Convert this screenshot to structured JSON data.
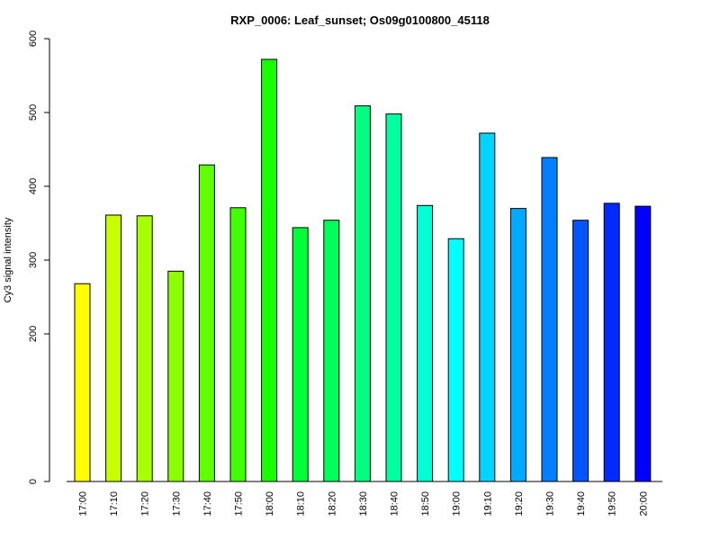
{
  "chart_data": {
    "type": "bar",
    "title": "RXP_0006: Leaf_sunset; Os09g0100800_45118",
    "xlabel": "",
    "ylabel": "Cy3 signal intensity",
    "ylim": [
      0,
      600
    ],
    "y_ticks": [
      0,
      200,
      300,
      400,
      500,
      600
    ],
    "grid": false,
    "categories": [
      "17:00",
      "17:10",
      "17:20",
      "17:30",
      "17:40",
      "17:50",
      "18:00",
      "18:10",
      "18:20",
      "18:30",
      "18:40",
      "18:50",
      "19:00",
      "19:10",
      "19:20",
      "19:30",
      "19:40",
      "19:50",
      "20:00"
    ],
    "values": [
      268,
      361,
      360,
      285,
      429,
      371,
      572,
      344,
      354,
      509,
      498,
      374,
      329,
      472,
      370,
      439,
      354,
      377,
      373
    ],
    "colors": [
      "#ffff00",
      "#c7ff00",
      "#a8ff00",
      "#8bff00",
      "#60ff00",
      "#40ff00",
      "#18ff00",
      "#00ff38",
      "#00ff5a",
      "#00ff80",
      "#00ffa0",
      "#00ffd2",
      "#00ffff",
      "#00d4ff",
      "#00aaff",
      "#0080ff",
      "#0055ff",
      "#002aff",
      "#0000ff"
    ]
  }
}
